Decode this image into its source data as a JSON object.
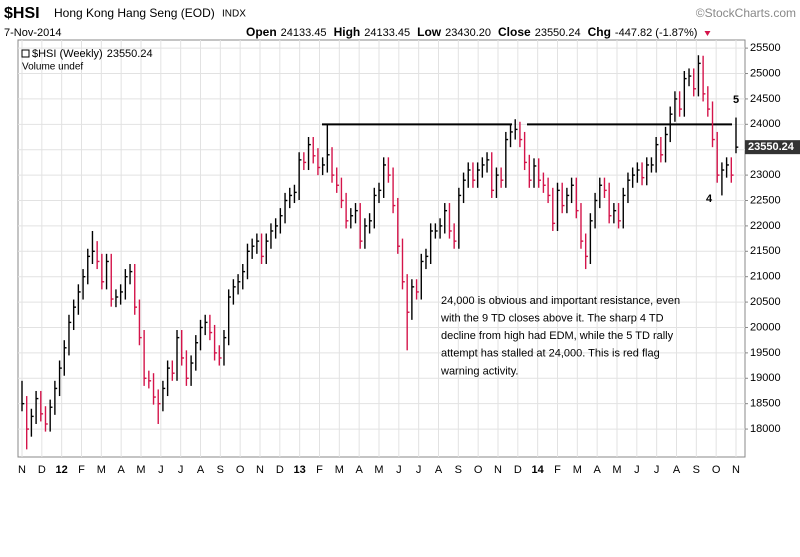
{
  "header": {
    "symbol": "$HSI",
    "name": "Hong Kong Hang Seng (EOD)",
    "exchange": "INDX",
    "source": "©StockCharts.com",
    "date": "7-Nov-2014",
    "quote": [
      {
        "label": "Open",
        "value": "24133.45"
      },
      {
        "label": "High",
        "value": "24133.45"
      },
      {
        "label": "Low",
        "value": "23430.20"
      },
      {
        "label": "Close",
        "value": "23550.24"
      },
      {
        "label": "Chg",
        "value": "-447.82 (-1.87%)"
      }
    ]
  },
  "chart_data": {
    "type": "hlc",
    "legend": [
      "$HSI (Weekly)",
      "Volume undef"
    ],
    "up_color": "#000000",
    "down_color": "#d4144a",
    "categories": [
      "N",
      "D",
      "12",
      "F",
      "M",
      "A",
      "M",
      "J",
      "J",
      "A",
      "S",
      "O",
      "N",
      "D",
      "13",
      "F",
      "M",
      "A",
      "M",
      "J",
      "J",
      "A",
      "S",
      "O",
      "N",
      "D",
      "14",
      "F",
      "M",
      "A",
      "M",
      "J",
      "J",
      "A",
      "S",
      "O",
      "N"
    ],
    "close": [
      18500,
      18000,
      18250,
      18600,
      18300,
      18100,
      18430,
      18800,
      19200,
      19600,
      20100,
      20400,
      20700,
      21000,
      21400,
      21500,
      21300,
      20900,
      21300,
      20560,
      20600,
      20700,
      21000,
      21100,
      20400,
      19800,
      19000,
      18950,
      18630,
      18500,
      18800,
      19200,
      19100,
      19800,
      19400,
      19000,
      19300,
      19700,
      20000,
      20100,
      19900,
      19500,
      19400,
      19800,
      20600,
      20800,
      20900,
      21100,
      21500,
      21600,
      21700,
      21400,
      21700,
      21900,
      22000,
      22200,
      22500,
      22600,
      22660,
      23300,
      23250,
      23600,
      23380,
      23150,
      23200,
      23400,
      23000,
      22800,
      22500,
      22100,
      22200,
      22300,
      21700,
      22000,
      22100,
      22600,
      22700,
      23200,
      23000,
      22400,
      21600,
      20900,
      20300,
      20800,
      20700,
      21300,
      21400,
      21900,
      21900,
      22000,
      22300,
      21900,
      21700,
      22600,
      22900,
      23100,
      22900,
      23100,
      23200,
      23300,
      22700,
      23000,
      22900,
      23700,
      23850,
      23900,
      23700,
      23250,
      22900,
      23180,
      22900,
      22800,
      22600,
      22050,
      22700,
      22400,
      22600,
      22800,
      22300,
      21700,
      21400,
      22100,
      22500,
      22800,
      22700,
      22200,
      22300,
      22100,
      22600,
      22900,
      23000,
      23100,
      22950,
      23200,
      23200,
      23600,
      23400,
      23800,
      24200,
      24500,
      24300,
      24900,
      24950,
      24700,
      25200,
      24600,
      24300,
      23700,
      23000,
      23100,
      23200,
      23000,
      23550.24
    ],
    "high": [
      18950,
      18650,
      18400,
      18750,
      18750,
      18450,
      18580,
      18950,
      19350,
      19750,
      20250,
      20550,
      20850,
      21150,
      21550,
      21900,
      21700,
      21450,
      21450,
      21450,
      20750,
      20850,
      21150,
      21250,
      21250,
      20550,
      19950,
      19150,
      19100,
      18780,
      18950,
      19350,
      19350,
      19950,
      19950,
      19550,
      19450,
      19850,
      20150,
      20250,
      20250,
      20050,
      19650,
      19950,
      20750,
      20950,
      21050,
      21250,
      21650,
      21750,
      21850,
      21850,
      21850,
      22050,
      22150,
      22350,
      22650,
      22750,
      22810,
      23450,
      23450,
      23750,
      23750,
      23530,
      23350,
      24000,
      23550,
      23150,
      22950,
      22650,
      22350,
      22450,
      22450,
      22150,
      22250,
      22750,
      22850,
      23350,
      23350,
      23150,
      22550,
      21750,
      21050,
      20950,
      20950,
      21450,
      21550,
      22050,
      22050,
      22150,
      22450,
      22450,
      22050,
      22750,
      23050,
      23250,
      23250,
      23250,
      23350,
      23450,
      23450,
      23150,
      23150,
      23850,
      24000,
      24100,
      24050,
      23850,
      23400,
      23330,
      23330,
      23050,
      22950,
      22750,
      22850,
      22850,
      22750,
      22950,
      22950,
      22450,
      21850,
      22250,
      22650,
      22950,
      22950,
      22850,
      22450,
      22450,
      22750,
      23050,
      23150,
      23250,
      23250,
      23350,
      23350,
      23750,
      23750,
      23950,
      24350,
      24650,
      24650,
      25050,
      25100,
      25100,
      25360,
      25350,
      24750,
      24450,
      23850,
      23250,
      23350,
      23350,
      24133.45
    ],
    "low": [
      18350,
      17600,
      17850,
      18100,
      18150,
      17950,
      17950,
      18280,
      18650,
      19050,
      19450,
      19950,
      20250,
      20550,
      20850,
      21250,
      21150,
      20750,
      20750,
      20410,
      20400,
      20450,
      20550,
      20850,
      20250,
      19650,
      18850,
      18800,
      18480,
      18100,
      18350,
      18650,
      18950,
      18950,
      19250,
      18850,
      18850,
      19150,
      19550,
      19850,
      19750,
      19350,
      19250,
      19250,
      19650,
      20450,
      20650,
      20750,
      20950,
      21350,
      21450,
      21250,
      21250,
      21550,
      21750,
      21850,
      22050,
      22350,
      22450,
      22510,
      23100,
      23100,
      23230,
      23000,
      23000,
      23050,
      22850,
      22650,
      22350,
      21950,
      21950,
      22050,
      21550,
      21550,
      21850,
      21950,
      22450,
      22550,
      22850,
      22250,
      21450,
      20750,
      19550,
      20150,
      20550,
      20550,
      21150,
      21250,
      21750,
      21750,
      21850,
      21750,
      21550,
      21550,
      22450,
      22750,
      22750,
      22750,
      22950,
      23050,
      22550,
      22550,
      22750,
      22750,
      23550,
      23700,
      23550,
      23100,
      22750,
      22750,
      22750,
      22650,
      22450,
      21900,
      21900,
      22250,
      22250,
      22450,
      22150,
      21550,
      21150,
      21250,
      21950,
      22350,
      22550,
      22050,
      22050,
      21950,
      21950,
      22450,
      22750,
      22850,
      22800,
      22800,
      23050,
      23050,
      23250,
      23250,
      23650,
      24050,
      24150,
      24150,
      24750,
      24550,
      24550,
      24450,
      24150,
      23550,
      22850,
      22600,
      22950,
      22850,
      23430.2
    ],
    "ylim": [
      17450,
      25660
    ],
    "yticks": [
      18000,
      18500,
      19000,
      19500,
      20000,
      20500,
      21000,
      21500,
      22000,
      22500,
      23000,
      23500,
      24000,
      24500,
      25000,
      25500
    ],
    "grid": true,
    "resistance": 24000,
    "annotations": {
      "note": [
        "24,000 is obvious and important resistance, even",
        "with the 9 TD closes above it.  The sharp 4 TD",
        "decline from high had EDM, while the 5 TD rally",
        "attempt has stalled at 24,000.  This is red flag",
        "warning activity."
      ],
      "count_4": "4",
      "count_5": "5"
    }
  }
}
